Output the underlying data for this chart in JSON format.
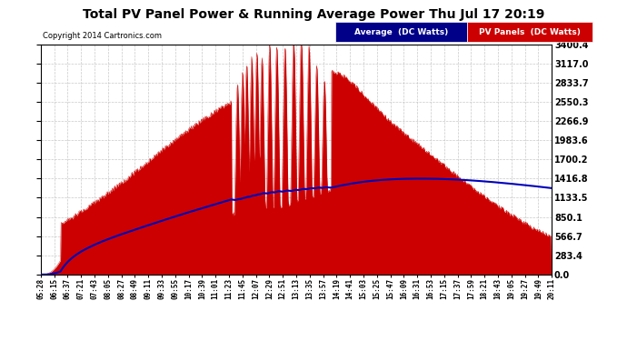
{
  "title": "Total PV Panel Power & Running Average Power Thu Jul 17 20:19",
  "copyright": "Copyright 2014 Cartronics.com",
  "legend_avg": "Average  (DC Watts)",
  "legend_pv": "PV Panels  (DC Watts)",
  "yticks": [
    0.0,
    283.4,
    566.7,
    850.1,
    1133.5,
    1416.8,
    1700.2,
    1983.6,
    2266.9,
    2550.3,
    2833.7,
    3117.0,
    3400.4
  ],
  "ymax": 3400.4,
  "ymin": 0.0,
  "background_color": "#ffffff",
  "fill_color": "#cc0000",
  "avg_line_color": "#0000bb",
  "grid_color": "#bbbbbb",
  "xtick_labels": [
    "05:28",
    "06:15",
    "06:37",
    "07:21",
    "07:43",
    "08:05",
    "08:27",
    "08:49",
    "09:11",
    "09:33",
    "09:55",
    "10:17",
    "10:39",
    "11:01",
    "11:23",
    "11:45",
    "12:07",
    "12:29",
    "12:51",
    "13:13",
    "13:35",
    "13:57",
    "14:19",
    "14:41",
    "15:03",
    "15:25",
    "15:47",
    "16:09",
    "16:31",
    "16:53",
    "17:15",
    "17:37",
    "17:59",
    "18:21",
    "18:43",
    "19:05",
    "19:27",
    "19:49",
    "20:11"
  ]
}
